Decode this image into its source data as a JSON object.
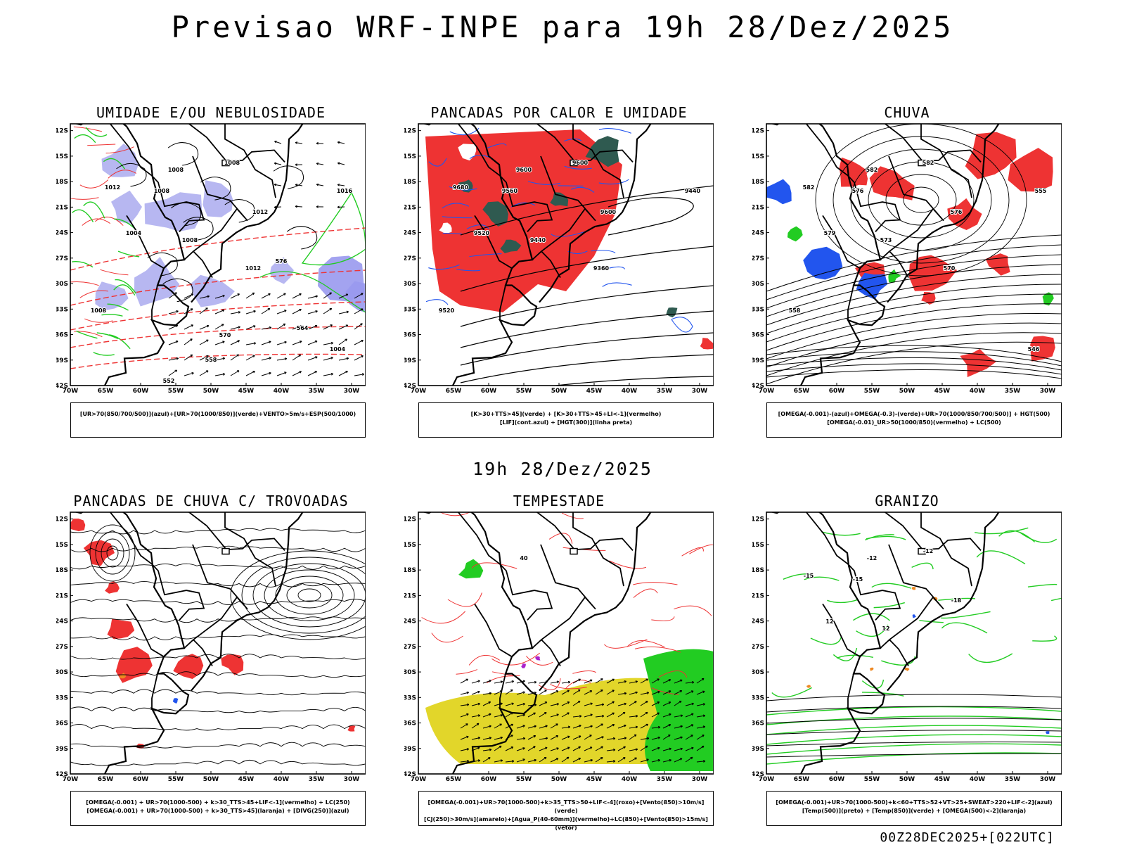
{
  "title": "Previsao WRF-INPE  para 19h 28/Dez/2025",
  "middle_title": "19h 28/Dez/2025",
  "footer": "00Z28DEC2025+[022UTC]",
  "axes": {
    "lat_labels": [
      "12S",
      "15S",
      "18S",
      "21S",
      "24S",
      "27S",
      "30S",
      "33S",
      "36S",
      "39S",
      "42S"
    ],
    "lon_labels": [
      "70W",
      "65W",
      "60W",
      "55W",
      "50W",
      "45W",
      "40W",
      "35W",
      "30W"
    ]
  },
  "colors": {
    "blue": "#2255ee",
    "red": "#ee3333",
    "green": "#22cc22",
    "lavender": "#aaaaee",
    "teal": "#2f5a50",
    "yellow": "#e2d62a",
    "orange": "#ee8822"
  },
  "panels": [
    {
      "title": "UMIDADE E/OU NEBULOSIDADE",
      "legend": [
        "[UR>70(850/700/500)](azul)+[UR>70(1000/850)](verde)+VENTO>5m/s+ESP(500/1000)"
      ],
      "contour_labels": [
        "1008",
        "1008",
        "1012",
        "1008",
        "1012",
        "1004",
        "1008",
        "1012",
        "1008",
        "1016",
        "1004",
        "576",
        "570",
        "564",
        "558",
        "552"
      ]
    },
    {
      "title": "PANCADAS POR CALOR E UMIDADE",
      "legend": [
        "[K>30+TTS>45](verde) + [K>30+TTS>45+LI<-1](vermelho)",
        "[LIF](cont.azul) + [HGT(300)](linha preta)"
      ],
      "contour_labels": [
        "9600",
        "9600",
        "9680",
        "9560",
        "9600",
        "9520",
        "9440",
        "9360",
        "9520",
        "9440"
      ]
    },
    {
      "title": "CHUVA",
      "legend": [
        "[OMEGA(-0.001)-(azul)+OMEGA(-0.3)-(verde)+UR>70(1000/850/700/500)] + HGT(500)",
        "[OMEGA(-0.01)_UR>50(1000/850)(vermelho) + LC(500)"
      ],
      "contour_labels": [
        "582",
        "582",
        "582",
        "576",
        "576",
        "579",
        "573",
        "570",
        "558",
        "555",
        "546"
      ]
    },
    {
      "title": "PANCADAS DE CHUVA C/ TROVOADAS",
      "legend": [
        "[OMEGA(-0.001) + UR>70(1000-500) + k>30_TTS>45+LIF<-1](vermelho) + LC(250)",
        "[OMEGA(-0.001) + UR>70(1000-500) + k>30_TTS>45](laranja) + [DIVG(250)](azul)"
      ],
      "contour_labels": []
    },
    {
      "title": "TEMPESTADE",
      "legend": [
        "[OMEGA(-0.001)+UR>70(1000-500)+k>35_TTS>50+LIF<-4](roxo)+[Vento(850)>10m/s](verde)",
        "[CJ(250)>30m/s](amarelo)+[Agua_P(40-60mm)](vermelho)+LC(850)+[Vento(850)>15m/s](vetor)"
      ],
      "contour_labels": [
        "40"
      ]
    },
    {
      "title": "GRANIZO",
      "legend": [
        "[OMEGA(-0.001)+UR>70(1000-500)+k<60+TTS>52+VT>25+SWEAT>220+LIF<-2](azul)",
        "[Temp(500)](preto) + [Temp(850)](verde) + [OMEGA(500)<-2](laranja)"
      ],
      "contour_labels": [
        "-12",
        "-12",
        "-15",
        "-15",
        "-18",
        "12",
        "12"
      ]
    }
  ]
}
